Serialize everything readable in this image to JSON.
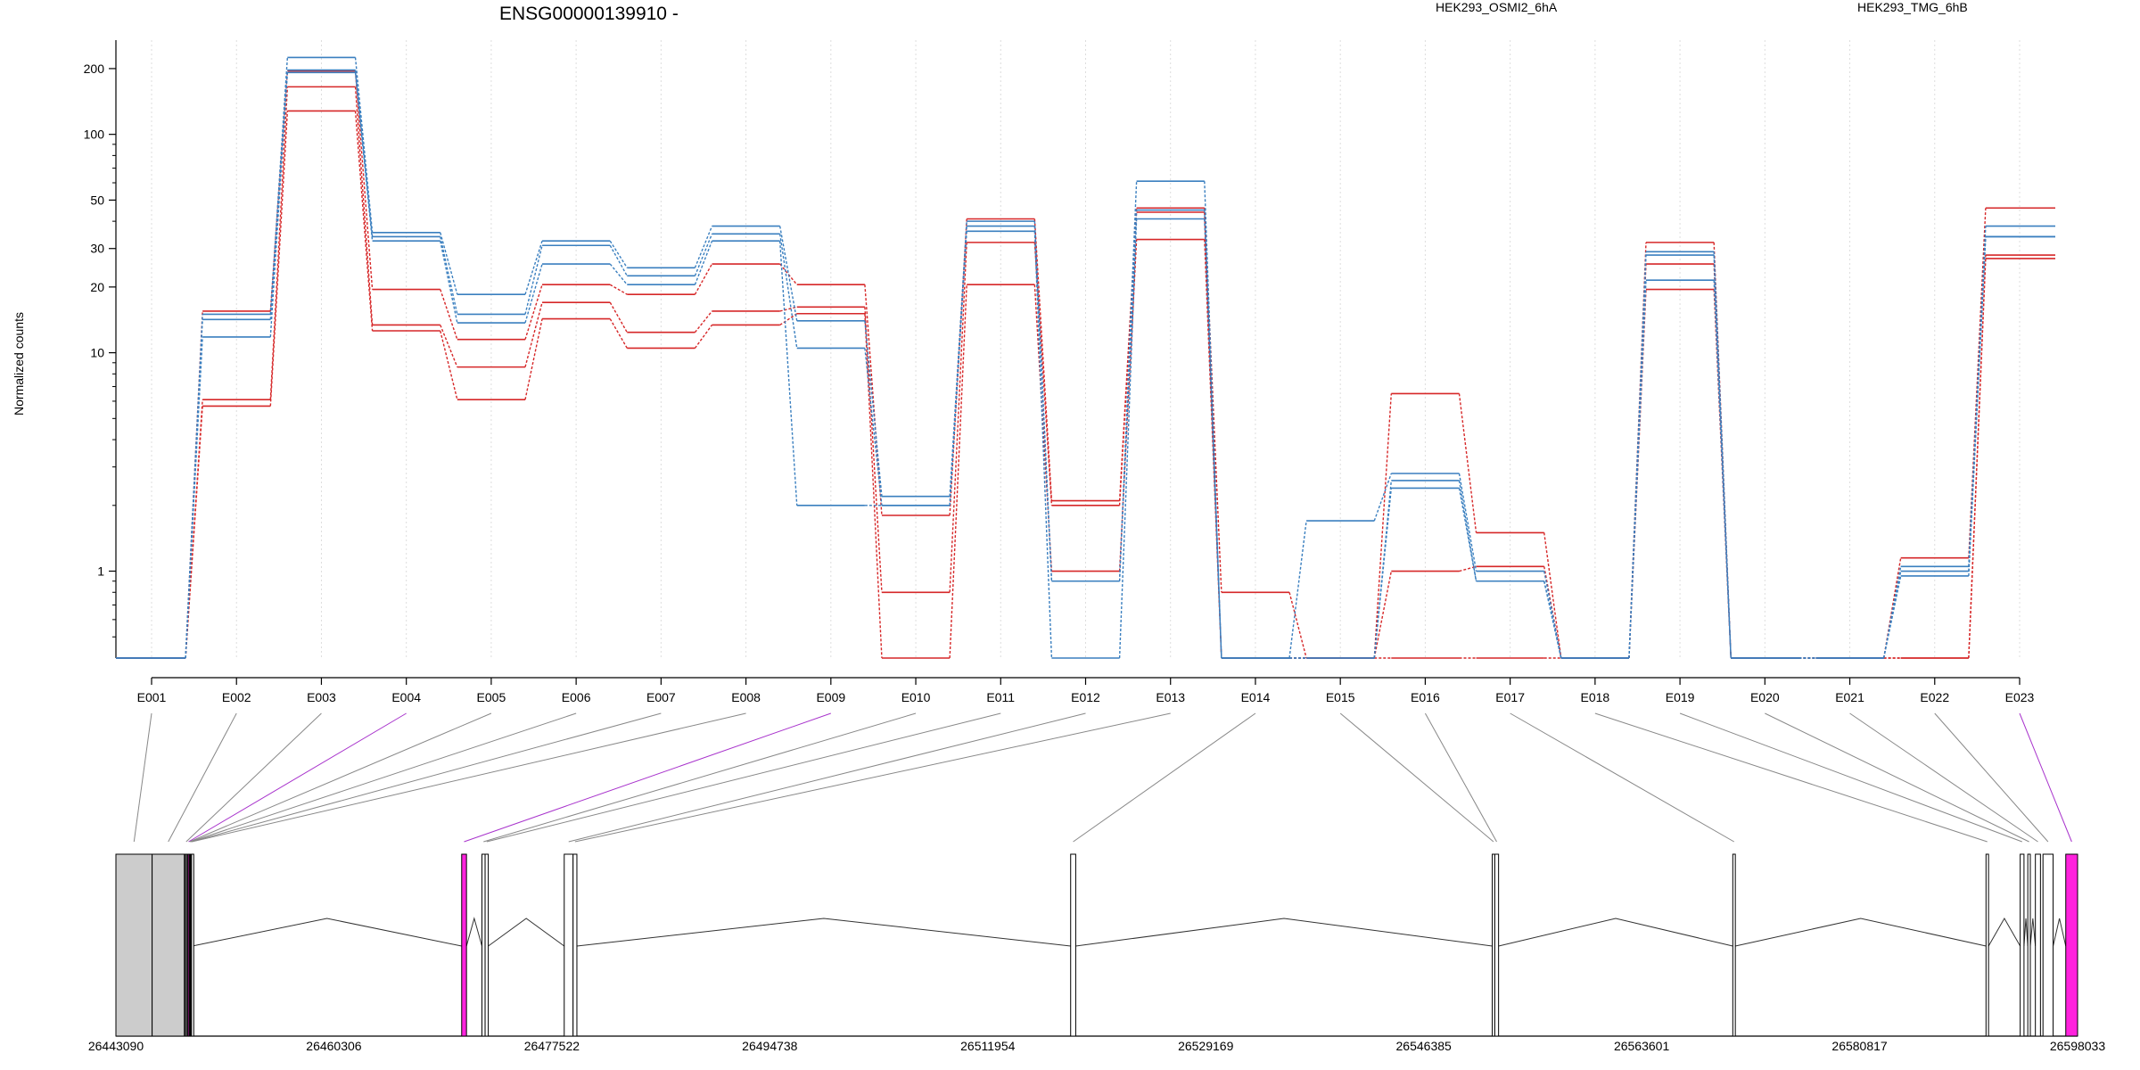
{
  "chart_data": {
    "type": "line",
    "title": "ENSG00000139910 -",
    "ylabel": "Normalized counts",
    "xlabel": "",
    "y_scale": "log",
    "ylim": [
      0.4,
      270
    ],
    "y_ticks": [
      1,
      10,
      20,
      30,
      50,
      100,
      200
    ],
    "y_tick_labels": [
      "1",
      "10",
      "20",
      "30",
      "50",
      "100",
      "200"
    ],
    "grid": "vertical dotted at exon positions",
    "categories": [
      "E001",
      "E002",
      "E003",
      "E004",
      "E005",
      "E006",
      "E007",
      "E008",
      "E009",
      "E010",
      "E011",
      "E012",
      "E013",
      "E014",
      "E015",
      "E016",
      "E017",
      "E018",
      "E019",
      "E020",
      "E021",
      "E022",
      "E023"
    ],
    "legend": [
      {
        "label": "HEK293_OSMI2_6hA",
        "color": "#d62728"
      },
      {
        "label": "HEK293_TMG_6hB",
        "color": "#3a7fbf"
      }
    ],
    "legend_position": "top",
    "series": [
      {
        "group": "HEK293_OSMI2_6hA",
        "color": "#d62728",
        "values": [
          0.4,
          15.5,
          195,
          19.5,
          11.5,
          20.5,
          18.5,
          25.5,
          20.5,
          1.8,
          41,
          2.1,
          46,
          0.8,
          0.4,
          6.5,
          1.5,
          0.4,
          32,
          0.4,
          0.4,
          1.15,
          46
        ]
      },
      {
        "group": "HEK293_OSMI2_6hA",
        "color": "#d62728",
        "values": [
          0.4,
          6.1,
          165,
          13.4,
          8.6,
          17,
          12.4,
          15.5,
          16.2,
          0.8,
          32,
          2,
          44,
          0.4,
          0.4,
          1.0,
          1.05,
          0.4,
          25.5,
          0.4,
          0.4,
          0.4,
          28
        ]
      },
      {
        "group": "HEK293_OSMI2_6hA",
        "color": "#d62728",
        "values": [
          0.4,
          5.7,
          128,
          12.6,
          6.1,
          14.3,
          10.5,
          13.4,
          15.1,
          0.4,
          20.5,
          1.0,
          33,
          0.4,
          0.4,
          0.4,
          0.4,
          0.4,
          19.5,
          0.4,
          0.4,
          0.4,
          27
        ]
      },
      {
        "group": "HEK293_TMG_6hB",
        "color": "#3a7fbf",
        "values": [
          0.4,
          15,
          225,
          35.5,
          18.5,
          32.5,
          24.5,
          38,
          14,
          2.2,
          40,
          0.9,
          61,
          0.4,
          1.7,
          2.8,
          1.0,
          0.4,
          29,
          0.4,
          0.4,
          1.05,
          38
        ]
      },
      {
        "group": "HEK293_TMG_6hB",
        "color": "#3a7fbf",
        "values": [
          0.4,
          14.2,
          197,
          34,
          15,
          31,
          22.5,
          35,
          10.5,
          2.0,
          38,
          0.9,
          45,
          0.4,
          0.4,
          2.6,
          0.9,
          0.4,
          28,
          0.4,
          0.4,
          1.0,
          34
        ]
      },
      {
        "group": "HEK293_TMG_6hB",
        "color": "#3a7fbf",
        "values": [
          0.4,
          11.8,
          192,
          32.5,
          13.7,
          25.5,
          20.5,
          32.5,
          2.0,
          2.0,
          36,
          0.4,
          41,
          0.4,
          0.4,
          2.4,
          0.9,
          0.4,
          21.5,
          0.4,
          0.4,
          0.95,
          34
        ]
      }
    ],
    "gene_model": {
      "coordinate_labels": [
        "26443090",
        "26460306",
        "26477522",
        "26494738",
        "26511954",
        "26529169",
        "26546385",
        "26563601",
        "26580817",
        "26598033"
      ],
      "range": [
        26443090,
        26598033
      ],
      "exons": [
        {
          "id": "E001",
          "start": 26443090,
          "end": 26445950,
          "fill": "#cccccc"
        },
        {
          "id": "E002",
          "start": 26445950,
          "end": 26448500,
          "fill": "#cccccc"
        },
        {
          "id": "E003",
          "start": 26448500,
          "end": 26448780,
          "fill": "#444444"
        },
        {
          "id": "E004",
          "start": 26448780,
          "end": 26448880,
          "fill": "#ff22dd"
        },
        {
          "id": "E005",
          "start": 26448880,
          "end": 26448940,
          "fill": "#ffffff"
        },
        {
          "id": "E006",
          "start": 26448940,
          "end": 26449000,
          "fill": "#ffffff"
        },
        {
          "id": "E007",
          "start": 26449000,
          "end": 26449060,
          "fill": "#ffffff"
        },
        {
          "id": "E008",
          "start": 26449060,
          "end": 26449120,
          "fill": "#ffffff"
        },
        {
          "id": "E009",
          "start": 26470400,
          "end": 26470780,
          "fill": "#ff22dd"
        },
        {
          "id": "E010",
          "start": 26472000,
          "end": 26472250,
          "fill": "#ffffff"
        },
        {
          "id": "E011",
          "start": 26472250,
          "end": 26472500,
          "fill": "#ffffff"
        },
        {
          "id": "E012",
          "start": 26478500,
          "end": 26479200,
          "fill": "#ffffff"
        },
        {
          "id": "E013",
          "start": 26479200,
          "end": 26479500,
          "fill": "#ffffff"
        },
        {
          "id": "E014",
          "start": 26518500,
          "end": 26518900,
          "fill": "#ffffff"
        },
        {
          "id": "E015",
          "start": 26551800,
          "end": 26552000,
          "fill": "#ffffff"
        },
        {
          "id": "E016",
          "start": 26552000,
          "end": 26552300,
          "fill": "#ffffff"
        },
        {
          "id": "E017",
          "start": 26570800,
          "end": 26571000,
          "fill": "#ffffff"
        },
        {
          "id": "E018",
          "start": 26590800,
          "end": 26591000,
          "fill": "#ffffff"
        },
        {
          "id": "E019",
          "start": 26593500,
          "end": 26593800,
          "fill": "#ffffff"
        },
        {
          "id": "E020",
          "start": 26594100,
          "end": 26594300,
          "fill": "#ffffff"
        },
        {
          "id": "E021",
          "start": 26594700,
          "end": 26595100,
          "fill": "#ffffff"
        },
        {
          "id": "E022",
          "start": 26595300,
          "end": 26596100,
          "fill": "#ffffff"
        },
        {
          "id": "E023",
          "start": 26597100,
          "end": 26598033,
          "fill": "#ff22dd"
        }
      ],
      "highlight_color": "#ff22dd"
    }
  }
}
